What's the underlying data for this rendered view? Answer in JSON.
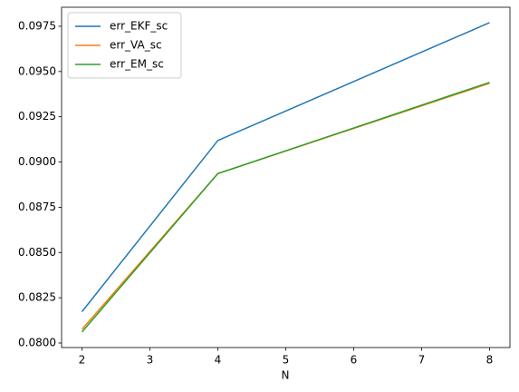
{
  "chart_data": {
    "type": "line",
    "xlabel": "N",
    "x": [
      2,
      4,
      8
    ],
    "series": [
      {
        "name": "err_EKF_sc",
        "color": "#1f77b4",
        "values": [
          0.08173,
          0.09119,
          0.0977
        ]
      },
      {
        "name": "err_VA_sc",
        "color": "#ff7f0e",
        "values": [
          0.08076,
          0.08936,
          0.09435
        ]
      },
      {
        "name": "err_EM_sc",
        "color": "#2ca02c",
        "values": [
          0.08061,
          0.08936,
          0.0944
        ]
      }
    ],
    "xlim": [
      1.7,
      8.3
    ],
    "xticks": [
      2,
      3,
      4,
      5,
      6,
      7,
      8
    ],
    "ylim": [
      0.07975,
      0.09855
    ],
    "yticks": [
      {
        "value": 0.08,
        "label": "0.0800"
      },
      0.0825,
      {
        "value": 0.085,
        "label": "0.0850"
      },
      0.0875,
      {
        "value": 0.09,
        "label": "0.0900"
      },
      0.0925,
      {
        "value": 0.095,
        "label": "0.0950"
      },
      0.0975
    ],
    "legend": "upper left"
  }
}
